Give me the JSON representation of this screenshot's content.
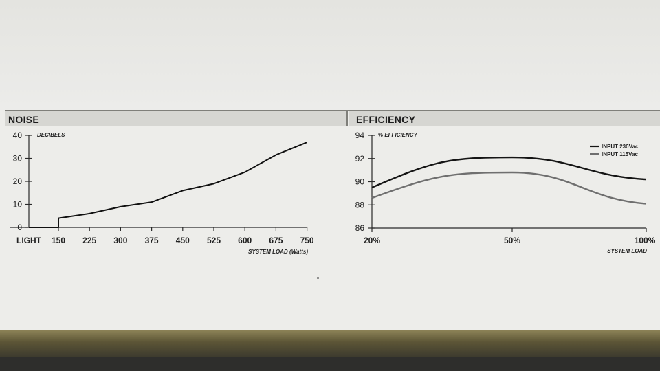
{
  "panels": {
    "noise_title": "NOISE",
    "efficiency_title": "EFFICIENCY"
  },
  "chart_data": [
    {
      "type": "line",
      "title": "NOISE",
      "ylabel": "DECIBELS",
      "xlabel": "SYSTEM LOAD (Watts)",
      "categories": [
        "LIGHT",
        "150",
        "225",
        "300",
        "375",
        "450",
        "525",
        "600",
        "675",
        "750"
      ],
      "yticks": [
        0,
        10,
        20,
        30,
        40
      ],
      "ylim": [
        0,
        40
      ],
      "series": [
        {
          "points": [
            [
              "LIGHT",
              0
            ],
            [
              "150",
              0
            ],
            [
              "150",
              4
            ],
            [
              "225",
              6
            ],
            [
              "300",
              9
            ],
            [
              "375",
              11
            ],
            [
              "450",
              16
            ],
            [
              "525",
              19
            ],
            [
              "600",
              24
            ],
            [
              "675",
              31.5
            ],
            [
              "750",
              37
            ]
          ],
          "color": "#111111"
        }
      ],
      "grid": false
    },
    {
      "type": "line",
      "title": "EFFICIENCY",
      "ylabel": "% EFFICIENCY",
      "xlabel": "SYSTEM LOAD",
      "categories": [
        "20%",
        "50%",
        "100%"
      ],
      "ylim": [
        86,
        94
      ],
      "yticks": [
        86,
        88,
        90,
        92,
        94
      ],
      "legend_position": "top-right",
      "series": [
        {
          "name": "INPUT 230Vac",
          "color": "#151515",
          "values": [
            89.5,
            92.1,
            90.2
          ]
        },
        {
          "name": "INPUT 115Vac",
          "color": "#6f6f6f",
          "values": [
            88.6,
            90.8,
            88.1
          ]
        }
      ],
      "grid": false
    }
  ]
}
